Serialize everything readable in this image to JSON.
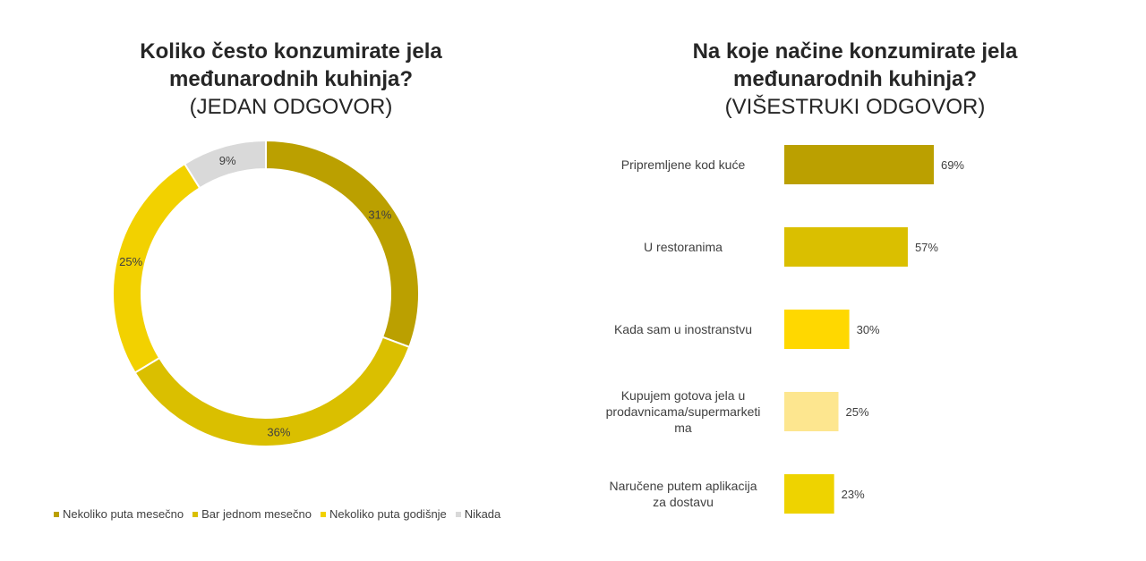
{
  "colors": {
    "dark_gold": "#BBA000",
    "gold": "#DABF00",
    "yellow": "#F2D100",
    "light_gray": "#D9D9D9",
    "bright_yellow": "#FFD800",
    "pale_yellow": "#FDE68F",
    "mid_yellow": "#EED300"
  },
  "chart_data": [
    {
      "type": "pie",
      "title": "Koliko često konzumirate jela međunarodnih kuhinja?",
      "subtitle": "(JEDAN ODGOVOR)",
      "categories": [
        "Nekoliko puta mesečno",
        "Bar jednom mesečno",
        "Nekoliko puta godišnje",
        "Nikada"
      ],
      "values": [
        31,
        36,
        25,
        9
      ],
      "labels": [
        "31%",
        "36%",
        "25%",
        "9%"
      ],
      "colors": [
        "#BBA000",
        "#DABF00",
        "#F2D100",
        "#D9D9D9"
      ],
      "legend_position": "bottom",
      "donut": true
    },
    {
      "type": "bar",
      "orientation": "horizontal",
      "title": "Na koje načine konzumirate jela međunarodnih kuhinja?",
      "subtitle": "(VIŠESTRUKI ODGOVOR)",
      "categories": [
        "Pripremljene kod kuće",
        "U restoranima",
        "Kada sam u inostranstvu",
        "Kupujem gotova jela u prodavnicama/supermarketi ma",
        "Naručene putem aplikacija za dostavu"
      ],
      "category_lines": [
        [
          "Pripremljene kod kuće"
        ],
        [
          "U restoranima"
        ],
        [
          "Kada sam u inostranstvu"
        ],
        [
          "Kupujem gotova jela u",
          "prodavnicama/supermarketi",
          "ma"
        ],
        [
          "Naručene putem aplikacija",
          "za dostavu"
        ]
      ],
      "values": [
        69,
        57,
        30,
        25,
        23
      ],
      "labels": [
        "69%",
        "57%",
        "30%",
        "25%",
        "23%"
      ],
      "colors": [
        "#BBA000",
        "#DABF00",
        "#FFD800",
        "#FDE68F",
        "#EED300"
      ],
      "xlim": [
        0,
        100
      ]
    }
  ]
}
